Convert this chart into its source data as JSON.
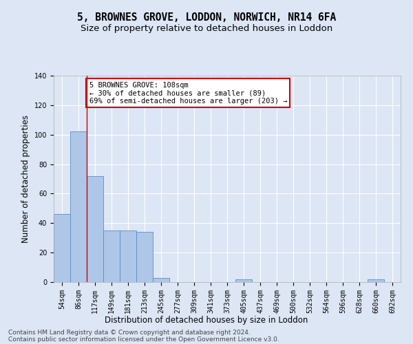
{
  "title_line1": "5, BROWNES GROVE, LODDON, NORWICH, NR14 6FA",
  "title_line2": "Size of property relative to detached houses in Loddon",
  "xlabel": "Distribution of detached houses by size in Loddon",
  "ylabel": "Number of detached properties",
  "bar_color": "#aec6e8",
  "bar_edge_color": "#5b8cc8",
  "categories": [
    "54sqm",
    "86sqm",
    "117sqm",
    "149sqm",
    "181sqm",
    "213sqm",
    "245sqm",
    "277sqm",
    "309sqm",
    "341sqm",
    "373sqm",
    "405sqm",
    "437sqm",
    "469sqm",
    "500sqm",
    "532sqm",
    "564sqm",
    "596sqm",
    "628sqm",
    "660sqm",
    "692sqm"
  ],
  "values": [
    46,
    102,
    72,
    35,
    35,
    34,
    3,
    0,
    0,
    0,
    0,
    2,
    0,
    0,
    0,
    0,
    0,
    0,
    0,
    2,
    0
  ],
  "annotation_text": "5 BROWNES GROVE: 108sqm\n← 30% of detached houses are smaller (89)\n69% of semi-detached houses are larger (203) →",
  "annotation_box_color": "#ffffff",
  "annotation_box_edge_color": "#cc0000",
  "ylim": [
    0,
    140
  ],
  "yticks": [
    0,
    20,
    40,
    60,
    80,
    100,
    120,
    140
  ],
  "footer_line1": "Contains HM Land Registry data © Crown copyright and database right 2024.",
  "footer_line2": "Contains public sector information licensed under the Open Government Licence v3.0.",
  "background_color": "#dce6f5",
  "plot_background_color": "#dce6f5",
  "grid_color": "#ffffff",
  "vline_x": 1.5,
  "title_fontsize": 10.5,
  "subtitle_fontsize": 9.5,
  "axis_label_fontsize": 8.5,
  "tick_fontsize": 7,
  "footer_fontsize": 6.5,
  "annotation_fontsize": 7.5
}
